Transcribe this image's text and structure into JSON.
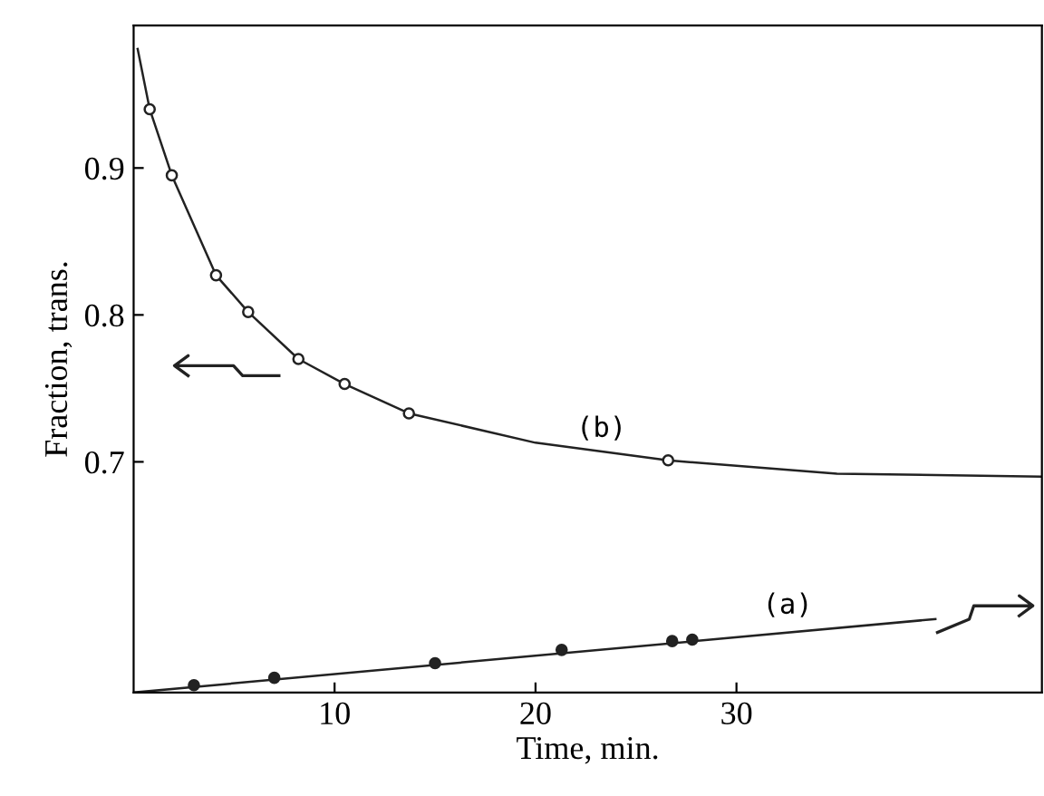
{
  "chart_data": {
    "type": "scatter",
    "xlabel": "Time, min.",
    "ylabel": "Fraction, trans.",
    "xlim": [
      0,
      45.2
    ],
    "ylim": [
      0.543,
      0.997
    ],
    "xticks": [
      10,
      20,
      30
    ],
    "yticks": [
      0.7,
      0.8,
      0.9
    ],
    "grid": false,
    "legend": false,
    "series": [
      {
        "type": "line",
        "color": "#222222",
        "marker": "none",
        "x": [
          0.2,
          0.8,
          1.9,
          4.1,
          5.7,
          8.2,
          10.5,
          13.7,
          20,
          26.6,
          35,
          45.2
        ],
        "values": [
          0.981,
          0.94,
          0.895,
          0.827,
          0.802,
          0.77,
          0.753,
          0.733,
          0.713,
          0.701,
          0.692,
          0.69
        ]
      },
      {
        "color": "#ffffff",
        "marker": "circle",
        "x": [
          0.8,
          1.9,
          4.1,
          5.7,
          8.2,
          10.5,
          13.7,
          26.6
        ],
        "values": [
          0.94,
          0.895,
          0.827,
          0.802,
          0.77,
          0.753,
          0.733,
          0.701
        ]
      },
      {
        "type": "line",
        "color": "#222222",
        "marker": "none",
        "x": [
          0,
          39.9
        ],
        "values": [
          0.543,
          0.593
        ]
      },
      {
        "color": "#222222",
        "marker": "circle",
        "x": [
          3.0,
          7.0,
          15.0,
          21.3,
          26.8,
          27.8
        ],
        "values": [
          0.548,
          0.553,
          0.563,
          0.572,
          0.578,
          0.579
        ]
      }
    ],
    "annotations": [
      "(b)",
      "(a)"
    ]
  }
}
